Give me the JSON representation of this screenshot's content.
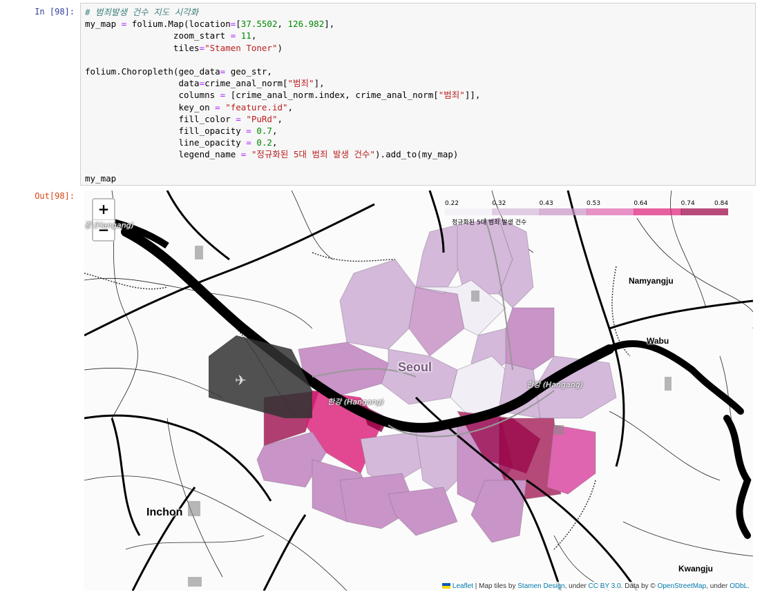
{
  "cell": {
    "in_prompt": "In [98]:",
    "out_prompt": "Out[98]:",
    "code": {
      "l1_comment": "# 범죄발생 건수 지도 시각화",
      "l2_a": "my_map ",
      "l2_eq": "=",
      "l2_b": " folium.Map(location",
      "l2_eq2": "=",
      "l2_c": "[",
      "l2_n1": "37.5502",
      "l2_d": ", ",
      "l2_n2": "126.982",
      "l2_e": "],",
      "l3_a": "                 zoom_start ",
      "l3_eq": "=",
      "l3_sp": " ",
      "l3_n": "11",
      "l3_b": ",",
      "l4_a": "                 tiles",
      "l4_eq": "=",
      "l4_s": "\"Stamen Toner\"",
      "l4_b": ")",
      "l6": "folium.Choropleth(geo_data",
      "l6_eq": "=",
      "l6_b": " geo_str,",
      "l7_a": "                  data",
      "l7_eq": "=",
      "l7_b": "crime_anal_norm[",
      "l7_s": "\"범죄\"",
      "l7_c": "],",
      "l8_a": "                  columns ",
      "l8_eq": "=",
      "l8_b": " [crime_anal_norm.index, crime_anal_norm[",
      "l8_s": "\"범죄\"",
      "l8_c": "]],",
      "l9_a": "                  key_on ",
      "l9_eq": "=",
      "l9_sp": " ",
      "l9_s": "\"feature.id\"",
      "l9_b": ",",
      "l10_a": "                  fill_color ",
      "l10_eq": "=",
      "l10_sp": " ",
      "l10_s": "\"PuRd\"",
      "l10_b": ",",
      "l11_a": "                  fill_opacity ",
      "l11_eq": "=",
      "l11_sp": " ",
      "l11_n": "0.7",
      "l11_b": ",",
      "l12_a": "                  line_opacity ",
      "l12_eq": "=",
      "l12_sp": " ",
      "l12_n": "0.2",
      "l12_b": ",",
      "l13_a": "                  legend_name ",
      "l13_eq": "=",
      "l13_sp": " ",
      "l13_s": "\"정규화된 5대 범죄 발생 건수\"",
      "l13_b": ").add_to(my_map)",
      "l15": "my_map"
    }
  },
  "map": {
    "zoom_in_label": "+",
    "zoom_out_label": "−",
    "places": {
      "seoul": "Seoul",
      "incheon": "Inchon",
      "namyangju": "Namyangju",
      "wabu": "Wabu",
      "kwangju": "Kwangju"
    },
    "river_labels": {
      "center": "한강 (Hangang)",
      "east": "한강 (Hangang)",
      "northwest": "강 (Hangang)"
    },
    "legend": {
      "ticks": [
        "0.22",
        "0.32",
        "0.43",
        "0.53",
        "0.64",
        "0.74",
        "0.84"
      ],
      "caption": "정규화된 5대 범죄 발생 건수",
      "colors": [
        "#f1eef6",
        "#d4b9da",
        "#c994c7",
        "#df65b0",
        "#dd1c77",
        "#980043"
      ]
    },
    "attribution": {
      "leaflet": "Leaflet",
      "t1": " | Map tiles by ",
      "stamen": "Stamen Design",
      "t2": ", under ",
      "ccby": "CC BY 3.0",
      "t3": ". Data by © ",
      "osm": "OpenStreetMap",
      "t4": ", under ",
      "odbl": "ODbL",
      "t5": "."
    }
  }
}
